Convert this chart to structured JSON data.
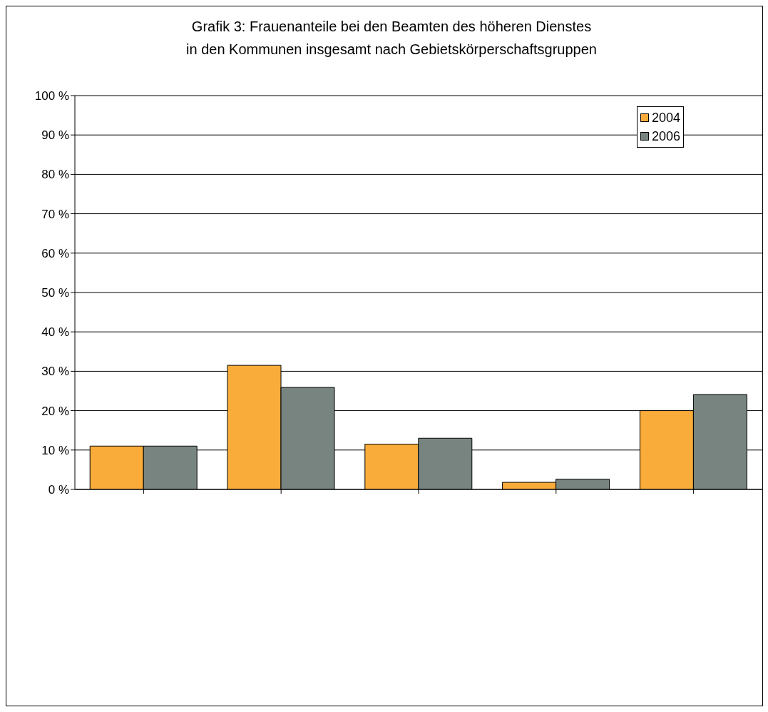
{
  "chart_data": {
    "type": "bar",
    "title": "Grafik 3: Frauenanteile bei den Beamten des höheren Dienstes in den Kommunen insgesamt nach Gebietskörperschaftsgruppen",
    "categories": [
      null,
      null,
      null,
      null,
      null
    ],
    "series": [
      {
        "name": "2004",
        "color": "#f9ac3a",
        "values": [
          11.0,
          31.5,
          11.5,
          1.8,
          20.0
        ]
      },
      {
        "name": "2006",
        "color": "#778480",
        "values": [
          11.0,
          25.9,
          13.0,
          2.6,
          24.1
        ]
      }
    ],
    "ylim": [
      0,
      100
    ],
    "yticks": [
      {
        "value": 0,
        "label": "0 %"
      },
      {
        "value": 10,
        "label": "10 %"
      },
      {
        "value": 20,
        "label": "20 %"
      },
      {
        "value": 30,
        "label": "30 %"
      },
      {
        "value": 40,
        "label": "40 %"
      },
      {
        "value": 50,
        "label": "50 %"
      },
      {
        "value": 60,
        "label": "60 %"
      },
      {
        "value": 70,
        "label": "70 %"
      },
      {
        "value": 80,
        "label": "80 %"
      },
      {
        "value": 90,
        "label": "90 %"
      },
      {
        "value": 100,
        "label": "100 %"
      }
    ],
    "grid": "y",
    "legend": "top right"
  }
}
